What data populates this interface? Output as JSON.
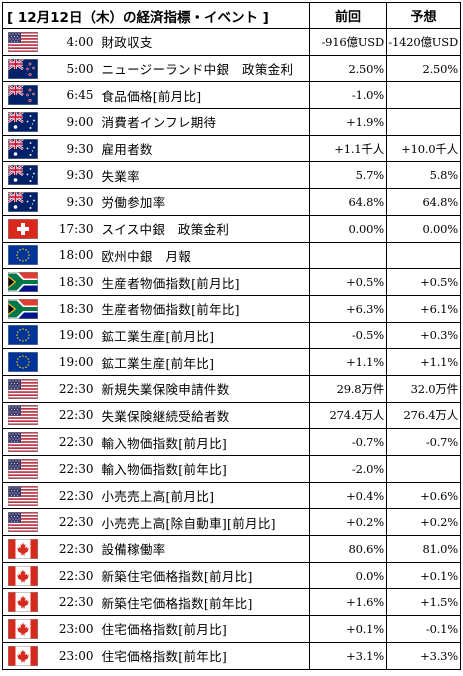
{
  "header": {
    "title": "[ 12月12日（木）の経済指標・イベント ]",
    "col_previous": "前回",
    "col_forecast": "予想"
  },
  "rows": [
    {
      "flag": "us-flag-icon",
      "time": "4:00",
      "name": "財政収支",
      "previous": "-916億USD",
      "forecast": "-1420億USD"
    },
    {
      "flag": "nz-flag-icon",
      "time": "5:00",
      "name": "ニュージーランド中銀　政策金利",
      "previous": "2.50%",
      "forecast": "2.50%"
    },
    {
      "flag": "nz-flag-icon",
      "time": "6:45",
      "name": "食品価格[前月比]",
      "previous": "-1.0%",
      "forecast": ""
    },
    {
      "flag": "au-flag-icon",
      "time": "9:00",
      "name": "消費者インフレ期待",
      "previous": "+1.9%",
      "forecast": ""
    },
    {
      "flag": "au-flag-icon",
      "time": "9:30",
      "name": "雇用者数",
      "previous": "+1.1千人",
      "forecast": "+10.0千人"
    },
    {
      "flag": "au-flag-icon",
      "time": "9:30",
      "name": "失業率",
      "previous": "5.7%",
      "forecast": "5.8%"
    },
    {
      "flag": "au-flag-icon",
      "time": "9:30",
      "name": "労働参加率",
      "previous": "64.8%",
      "forecast": "64.8%"
    },
    {
      "flag": "ch-flag-icon",
      "time": "17:30",
      "name": "スイス中銀　政策金利",
      "previous": "0.00%",
      "forecast": "0.00%"
    },
    {
      "flag": "eu-flag-icon",
      "time": "18:00",
      "name": "欧州中銀　月報",
      "previous": "",
      "forecast": ""
    },
    {
      "flag": "za-flag-icon",
      "time": "18:30",
      "name": "生産者物価指数[前月比]",
      "previous": "+0.5%",
      "forecast": "+0.5%"
    },
    {
      "flag": "za-flag-icon",
      "time": "18:30",
      "name": "生産者物価指数[前年比]",
      "previous": "+6.3%",
      "forecast": "+6.1%"
    },
    {
      "flag": "eu-flag-icon",
      "time": "19:00",
      "name": "鉱工業生産[前月比]",
      "previous": "-0.5%",
      "forecast": "+0.3%"
    },
    {
      "flag": "eu-flag-icon",
      "time": "19:00",
      "name": "鉱工業生産[前年比]",
      "previous": "+1.1%",
      "forecast": "+1.1%"
    },
    {
      "flag": "us-flag-icon",
      "time": "22:30",
      "name": "新規失業保険申請件数",
      "previous": "29.8万件",
      "forecast": "32.0万件"
    },
    {
      "flag": "us-flag-icon",
      "time": "22:30",
      "name": "失業保険継続受給者数",
      "previous": "274.4万人",
      "forecast": "276.4万人"
    },
    {
      "flag": "us-flag-icon",
      "time": "22:30",
      "name": "輸入物価指数[前月比]",
      "previous": "-0.7%",
      "forecast": "-0.7%"
    },
    {
      "flag": "us-flag-icon",
      "time": "22:30",
      "name": "輸入物価指数[前年比]",
      "previous": "-2.0%",
      "forecast": ""
    },
    {
      "flag": "us-flag-icon",
      "time": "22:30",
      "name": "小売売上高[前月比]",
      "previous": "+0.4%",
      "forecast": "+0.6%"
    },
    {
      "flag": "us-flag-icon",
      "time": "22:30",
      "name": "小売売上高[除自動車][前月比]",
      "previous": "+0.2%",
      "forecast": "+0.2%"
    },
    {
      "flag": "ca-flag-icon",
      "time": "22:30",
      "name": "設備稼働率",
      "previous": "80.6%",
      "forecast": "81.0%"
    },
    {
      "flag": "ca-flag-icon",
      "time": "22:30",
      "name": "新築住宅価格指数[前月比]",
      "previous": "0.0%",
      "forecast": "+0.1%"
    },
    {
      "flag": "ca-flag-icon",
      "time": "22:30",
      "name": "新築住宅価格指数[前年比]",
      "previous": "+1.6%",
      "forecast": "+1.5%"
    },
    {
      "flag": "ca-flag-icon",
      "time": "23:00",
      "name": "住宅価格指数[前月比]",
      "previous": "+0.1%",
      "forecast": "-0.1%"
    },
    {
      "flag": "ca-flag-icon",
      "time": "23:00",
      "name": "住宅価格指数[前年比]",
      "previous": "+3.1%",
      "forecast": "+3.3%"
    }
  ]
}
